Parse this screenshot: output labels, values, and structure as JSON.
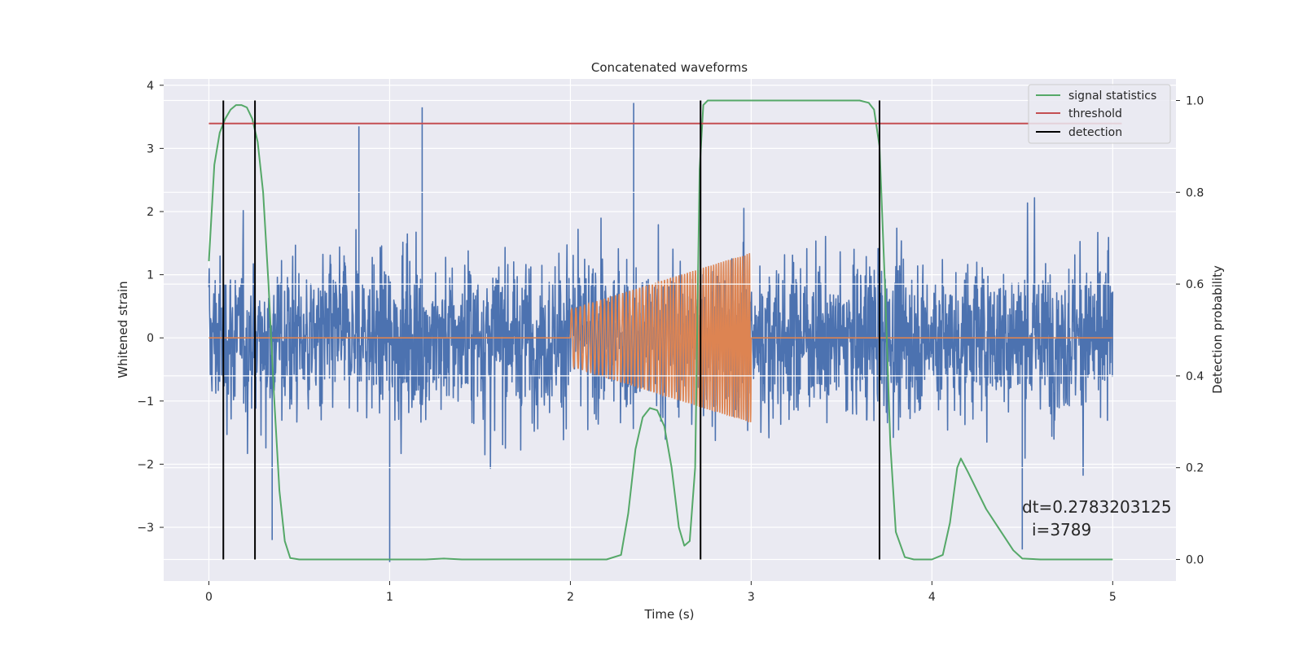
{
  "chart_data": {
    "type": "line",
    "title": "Concatenated waveforms",
    "xlabel": "Time (s)",
    "ylabel": "Whitened strain",
    "y2label": "Detection probability",
    "xlim": [
      -0.25,
      5.35
    ],
    "ylim": [
      -3.85,
      4.1
    ],
    "y2lim": [
      -0.047,
      1.047
    ],
    "xticks": [
      0,
      1,
      2,
      3,
      4,
      5
    ],
    "yticks": [
      -3,
      -2,
      -1,
      0,
      1,
      2,
      3,
      4
    ],
    "y2ticks": [
      0.0,
      0.2,
      0.4,
      0.6,
      0.8,
      1.0
    ],
    "xtick_labels": [
      "0",
      "1",
      "2",
      "3",
      "4",
      "5"
    ],
    "ytick_labels": [
      "−3",
      "−2",
      "−1",
      "0",
      "1",
      "2",
      "3",
      "4"
    ],
    "y2tick_labels": [
      "0.0",
      "0.2",
      "0.4",
      "0.6",
      "0.8",
      "1.0"
    ],
    "grid": true,
    "legend_position": "top-right",
    "legend": [
      "signal statistics",
      "threshold",
      "detection"
    ],
    "colors": {
      "noise": "#4c72b0",
      "injection": "#dd8452",
      "signal_statistics": "#55a868",
      "threshold": "#c44e52",
      "detection": "#000000",
      "background": "#eaeaf2",
      "grid": "#ffffff"
    },
    "noise": {
      "t_start": 0,
      "t_end": 5,
      "typical_abs_max": 2.2,
      "peak_values": [
        {
          "x": 0.83,
          "y": 3.35
        },
        {
          "x": 1.18,
          "y": 3.65
        },
        {
          "x": 2.35,
          "y": 3.72
        },
        {
          "x": 1.0,
          "y": -3.55
        },
        {
          "x": 0.35,
          "y": -3.2
        },
        {
          "x": 4.5,
          "y": -3.35
        }
      ]
    },
    "injection": {
      "t_start": 2.0,
      "t_end": 3.0,
      "amp_start": 0.45,
      "amp_end": 1.35
    },
    "signal_statistics": {
      "x": [
        0.0,
        0.03,
        0.06,
        0.09,
        0.12,
        0.15,
        0.18,
        0.21,
        0.24,
        0.27,
        0.3,
        0.33,
        0.36,
        0.39,
        0.42,
        0.45,
        0.5,
        0.6,
        1.0,
        1.2,
        1.3,
        1.4,
        1.6,
        2.0,
        2.2,
        2.28,
        2.32,
        2.36,
        2.4,
        2.44,
        2.48,
        2.52,
        2.56,
        2.6,
        2.63,
        2.66,
        2.69,
        2.715,
        2.735,
        2.76,
        2.8,
        3.0,
        3.4,
        3.6,
        3.65,
        3.68,
        3.71,
        3.74,
        3.77,
        3.8,
        3.85,
        3.9,
        4.0,
        4.06,
        4.1,
        4.14,
        4.16,
        4.2,
        4.25,
        4.3,
        4.35,
        4.4,
        4.45,
        4.5,
        4.6,
        5.0
      ],
      "y": [
        0.65,
        0.86,
        0.93,
        0.96,
        0.98,
        0.99,
        0.99,
        0.985,
        0.96,
        0.91,
        0.8,
        0.6,
        0.36,
        0.15,
        0.04,
        0.003,
        0.0,
        0.0,
        0.0,
        0.0,
        0.002,
        0.0,
        0.0,
        0.0,
        0.0,
        0.01,
        0.1,
        0.24,
        0.31,
        0.33,
        0.325,
        0.29,
        0.2,
        0.07,
        0.03,
        0.04,
        0.2,
        0.85,
        0.99,
        1.0,
        1.0,
        1.0,
        1.0,
        1.0,
        0.995,
        0.98,
        0.9,
        0.6,
        0.25,
        0.06,
        0.005,
        0.0,
        0.0,
        0.01,
        0.08,
        0.2,
        0.22,
        0.19,
        0.15,
        0.11,
        0.08,
        0.05,
        0.02,
        0.002,
        0.0,
        0.0
      ]
    },
    "threshold": {
      "value": 0.95,
      "x": [
        0,
        5.05
      ]
    },
    "detections": [
      0.08,
      0.255,
      2.72,
      3.71
    ],
    "annotation": [
      "dt=0.2783203125",
      "i=3789"
    ]
  }
}
